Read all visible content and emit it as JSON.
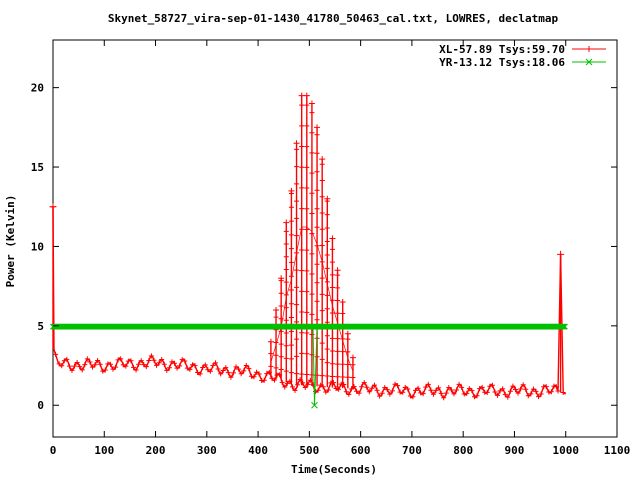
{
  "chart_data": {
    "type": "line",
    "title": "Skynet_58727_vira-sep-01-1430_41780_50463_cal.txt, LOWRES, declatmap",
    "xlabel": "Time(Seconds)",
    "ylabel": "Power (Kelvin)",
    "xlim": [
      0,
      1100
    ],
    "ylim": [
      -2,
      23
    ],
    "xticks": [
      "0",
      "100",
      "200",
      "300",
      "400",
      "500",
      "600",
      "700",
      "800",
      "900",
      "1000",
      "1100"
    ],
    "yticks": [
      "0",
      "5",
      "10",
      "15",
      "20"
    ],
    "legend_position": "top-right",
    "grid": false,
    "series": [
      {
        "name": "XL-57.89 Tsys:59.70",
        "color": "#ff0000",
        "marker": "plus",
        "start": [
          [
            0,
            12.5
          ],
          [
            2,
            3.5
          ],
          [
            5,
            3.2
          ],
          [
            10,
            2.7
          ]
        ],
        "end": [
          [
            985,
            0.9
          ],
          [
            990,
            9.5
          ],
          [
            995,
            0.8
          ],
          [
            1000,
            0.7
          ]
        ],
        "baseline_profile": [
          [
            10,
            2.6
          ],
          [
            100,
            2.5
          ],
          [
            200,
            2.7
          ],
          [
            300,
            2.3
          ],
          [
            380,
            2.1
          ],
          [
            420,
            1.8
          ],
          [
            470,
            1.3
          ],
          [
            550,
            1.1
          ],
          [
            620,
            1.0
          ],
          [
            700,
            0.9
          ],
          [
            990,
            0.9
          ]
        ],
        "peaks": [
          [
            425,
            4.0
          ],
          [
            435,
            6.0
          ],
          [
            445,
            8.0
          ],
          [
            455,
            11.5
          ],
          [
            465,
            13.5
          ],
          [
            475,
            16.5
          ],
          [
            485,
            19.5
          ],
          [
            495,
            19.5
          ],
          [
            505,
            19.0
          ],
          [
            515,
            17.5
          ],
          [
            525,
            15.5
          ],
          [
            535,
            13.0
          ],
          [
            545,
            10.5
          ],
          [
            555,
            8.5
          ],
          [
            565,
            6.5
          ],
          [
            575,
            4.5
          ],
          [
            585,
            3.0
          ]
        ]
      },
      {
        "name": "YR-13.12 Tsys:18.06",
        "color": "#00c000",
        "marker": "cross",
        "level": 4.95,
        "dip": [
          [
            507,
            4.9
          ],
          [
            510,
            0.0
          ],
          [
            515,
            4.9
          ]
        ],
        "range": [
          0,
          1000
        ]
      }
    ]
  }
}
